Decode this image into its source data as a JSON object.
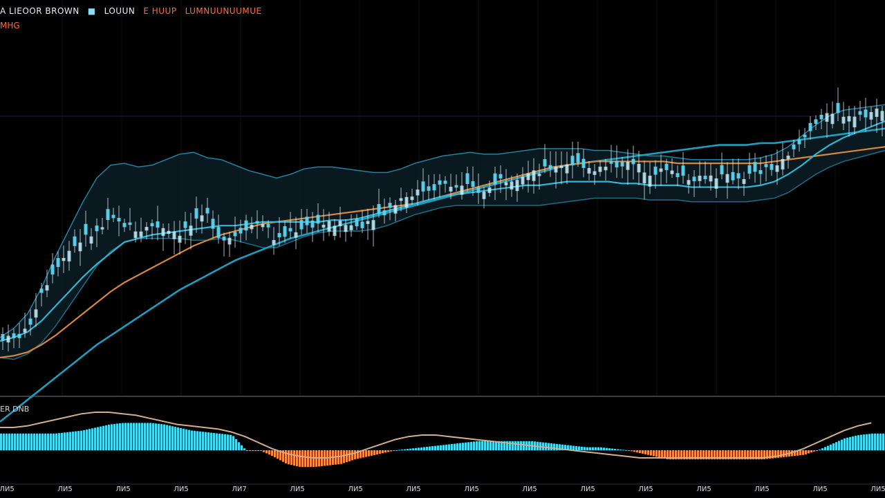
{
  "legend": {
    "ticker": "A LIEOOR BROWN",
    "icon": "square-icon",
    "b": "LOUUN",
    "c": "E HUUP",
    "d": "LUMNUUNUUMUE",
    "row2": "MHG"
  },
  "macd_label": "ER DNB",
  "colors": {
    "background": "#000000",
    "candle_up": "#58d4ef",
    "wick": "#e7f5ff",
    "ma_fast": "#2fb7d6",
    "ma_slow_orange": "#d6883e",
    "ma_long": "#1e9fc0",
    "band_fill": "#0b1a22",
    "band_line": "#2a97b8",
    "histogram_pos": "#46d9f2",
    "histogram_neg": "#ff8a45",
    "signal": "#d2b08f"
  },
  "chart_data": {
    "type": "line",
    "description_note": "",
    "x_labels": [
      "ЛИ5",
      "ЛИ5",
      "ЛИ5",
      "ЛИ5",
      "ЛИ7",
      "ЛИ5",
      "ЛИ5",
      "ЛИ5",
      "ЛИ5",
      "ЛИ5",
      "ЛИ5",
      "ЛИ5",
      "ЛИ5",
      "ЛИ5",
      "ЛИ5",
      "ЛИ5"
    ],
    "price": {
      "x": [
        0,
        20,
        40,
        60,
        80,
        100,
        120,
        140,
        160,
        180,
        200,
        220,
        240,
        260,
        280,
        300,
        320,
        340,
        360,
        380,
        400,
        420,
        440,
        460,
        480,
        500,
        520,
        540,
        560,
        580,
        600,
        620,
        640,
        660,
        680,
        700,
        720,
        740,
        760,
        780,
        800,
        820,
        840,
        860,
        880,
        900,
        920,
        940,
        960,
        980,
        1000,
        1020,
        1040,
        1060,
        1080,
        1100,
        1120,
        1140,
        1160,
        1180,
        1200,
        1220,
        1240,
        1260,
        1280
      ],
      "y": [
        62,
        60,
        70,
        112,
        138,
        157,
        170,
        176,
        190,
        185,
        178,
        184,
        182,
        176,
        186,
        195,
        168,
        174,
        184,
        188,
        166,
        177,
        183,
        186,
        186,
        185,
        183,
        194,
        200,
        214,
        220,
        224,
        228,
        226,
        226,
        220,
        234,
        236,
        240,
        242,
        249,
        252,
        251,
        246,
        248,
        252,
        250,
        242,
        244,
        240,
        236,
        238,
        238,
        236,
        238,
        242,
        248,
        258,
        276,
        298,
        304,
        306,
        303,
        307,
        314
      ]
    },
    "ma_fast": [
      58,
      62,
      68,
      80,
      96,
      112,
      128,
      142,
      154,
      166,
      170,
      174,
      176,
      178,
      180,
      182,
      184,
      184,
      186,
      188,
      188,
      188,
      188,
      188,
      190,
      190,
      192,
      196,
      200,
      204,
      208,
      212,
      216,
      218,
      220,
      222,
      224,
      226,
      228,
      228,
      230,
      232,
      232,
      232,
      232,
      230,
      230,
      228,
      228,
      228,
      226,
      226,
      226,
      226,
      226,
      228,
      232,
      240,
      250,
      262,
      272,
      280,
      286,
      292,
      298
    ],
    "ma_slow_orange": [
      40,
      42,
      46,
      54,
      64,
      76,
      88,
      100,
      112,
      122,
      130,
      138,
      146,
      154,
      162,
      168,
      174,
      178,
      182,
      186,
      188,
      190,
      192,
      194,
      196,
      198,
      200,
      202,
      204,
      206,
      208,
      212,
      216,
      220,
      224,
      228,
      232,
      236,
      240,
      244,
      248,
      250,
      252,
      254,
      254,
      254,
      254,
      254,
      254,
      252,
      252,
      252,
      252,
      252,
      252,
      252,
      254,
      256,
      258,
      260,
      262,
      264,
      266,
      268,
      270
    ],
    "ma_long": [
      -30,
      -18,
      -6,
      6,
      18,
      30,
      42,
      54,
      64,
      74,
      84,
      94,
      104,
      114,
      122,
      130,
      138,
      146,
      152,
      158,
      164,
      170,
      174,
      178,
      182,
      186,
      190,
      194,
      198,
      202,
      206,
      210,
      214,
      218,
      222,
      226,
      230,
      234,
      238,
      242,
      246,
      250,
      252,
      254,
      256,
      258,
      260,
      262,
      264,
      266,
      268,
      270,
      272,
      272,
      272,
      274,
      274,
      276,
      278,
      280,
      282,
      284,
      286,
      288,
      290
    ],
    "band_upper": [
      62,
      72,
      88,
      116,
      150,
      180,
      210,
      236,
      250,
      252,
      248,
      250,
      256,
      262,
      264,
      258,
      256,
      250,
      244,
      240,
      236,
      240,
      246,
      248,
      248,
      246,
      244,
      242,
      242,
      246,
      252,
      256,
      260,
      262,
      264,
      262,
      262,
      264,
      266,
      268,
      268,
      268,
      268,
      266,
      266,
      264,
      262,
      260,
      260,
      258,
      256,
      256,
      256,
      256,
      256,
      258,
      262,
      270,
      282,
      294,
      304,
      310,
      312,
      314,
      316
    ],
    "band_lower": [
      40,
      38,
      44,
      56,
      74,
      96,
      118,
      140,
      156,
      166,
      170,
      170,
      170,
      170,
      168,
      168,
      170,
      168,
      164,
      160,
      160,
      166,
      172,
      176,
      178,
      178,
      178,
      180,
      184,
      190,
      196,
      200,
      204,
      206,
      206,
      206,
      206,
      206,
      206,
      206,
      208,
      210,
      212,
      214,
      214,
      214,
      214,
      212,
      212,
      212,
      210,
      210,
      210,
      210,
      210,
      212,
      214,
      220,
      230,
      240,
      248,
      254,
      258,
      262,
      266
    ],
    "ylim": [
      0,
      400
    ],
    "macd": {
      "histogram": [
        22,
        22,
        22,
        22,
        22,
        24,
        26,
        30,
        34,
        36,
        36,
        36,
        34,
        30,
        26,
        24,
        22,
        20,
        0,
        0,
        -8,
        -18,
        -22,
        -22,
        -20,
        -18,
        -12,
        -8,
        -4,
        0,
        2,
        4,
        6,
        8,
        10,
        12,
        12,
        12,
        12,
        12,
        10,
        8,
        6,
        4,
        4,
        2,
        0,
        -4,
        -8,
        -12,
        -12,
        -12,
        -12,
        -12,
        -12,
        -12,
        -12,
        -10,
        -8,
        -6,
        0,
        8,
        16,
        20,
        22
      ],
      "signal": [
        30,
        30,
        32,
        36,
        40,
        44,
        48,
        50,
        50,
        48,
        46,
        42,
        38,
        34,
        32,
        30,
        28,
        24,
        18,
        10,
        2,
        -4,
        -8,
        -10,
        -10,
        -8,
        -4,
        2,
        8,
        14,
        18,
        20,
        20,
        18,
        16,
        14,
        12,
        10,
        8,
        6,
        4,
        2,
        0,
        -2,
        -4,
        -6,
        -8,
        -10,
        -10,
        -10,
        -10,
        -10,
        -10,
        -10,
        -10,
        -10,
        -10,
        -8,
        -4,
        2,
        10,
        18,
        26,
        32,
        36
      ],
      "ylim": [
        -40,
        60
      ]
    },
    "title": "",
    "xlabel": "",
    "ylabel": ""
  }
}
